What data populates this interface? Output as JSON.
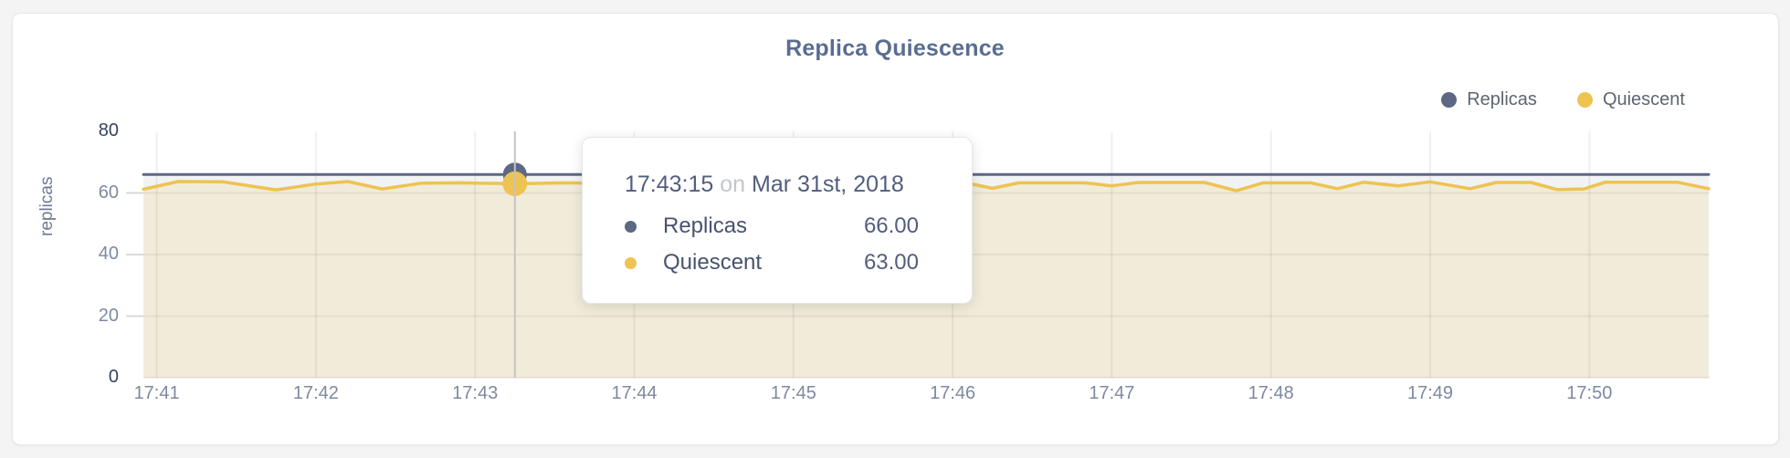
{
  "chart": {
    "title": "Replica Quiescence",
    "legend": [
      {
        "label": "Replicas",
        "color": "#5d6884"
      },
      {
        "label": "Quiescent",
        "color": "#edc351"
      }
    ],
    "y_axis": {
      "label": "replicas",
      "ticks": [
        0,
        20,
        40,
        60,
        80
      ]
    },
    "x_axis": {
      "ticks": [
        "17:41",
        "17:42",
        "17:43",
        "17:44",
        "17:45",
        "17:46",
        "17:47",
        "17:48",
        "17:49",
        "17:50"
      ]
    }
  },
  "chart_data": {
    "type": "line",
    "title": "Replica Quiescence",
    "xlabel": "",
    "ylabel": "replicas",
    "ylim": [
      0,
      80
    ],
    "grid": true,
    "legend_position": "top-right",
    "x_unit": "seconds after 17:41:00 on Mar 31st, 2018",
    "x_tick_seconds": [
      0,
      60,
      120,
      180,
      240,
      300,
      360,
      420,
      480,
      540
    ],
    "x_tick_labels": [
      "17:41",
      "17:42",
      "17:43",
      "17:44",
      "17:45",
      "17:46",
      "17:47",
      "17:48",
      "17:49",
      "17:50"
    ],
    "series": [
      {
        "name": "Replicas",
        "color": "#5d6884",
        "fill": "rgba(93,104,132,0.08)",
        "points": [
          [
            -5,
            66
          ],
          [
            585,
            66
          ]
        ]
      },
      {
        "name": "Quiescent",
        "color": "#edc351",
        "fill": "rgba(236,193,79,0.16)",
        "points": [
          [
            -5,
            61.2
          ],
          [
            8,
            63.7
          ],
          [
            25,
            63.6
          ],
          [
            45,
            61.0
          ],
          [
            60,
            62.9
          ],
          [
            72,
            63.7
          ],
          [
            85,
            61.3
          ],
          [
            100,
            63.2
          ],
          [
            115,
            63.3
          ],
          [
            135,
            63.0
          ],
          [
            155,
            63.3
          ],
          [
            170,
            63.1
          ],
          [
            185,
            63.3
          ],
          [
            200,
            63.0
          ],
          [
            215,
            63.2
          ],
          [
            230,
            63.1
          ],
          [
            245,
            63.3
          ],
          [
            260,
            63.1
          ],
          [
            275,
            63.3
          ],
          [
            290,
            63.4
          ],
          [
            305,
            63.3
          ],
          [
            315,
            61.5
          ],
          [
            325,
            63.3
          ],
          [
            350,
            63.3
          ],
          [
            360,
            62.3
          ],
          [
            370,
            63.4
          ],
          [
            395,
            63.4
          ],
          [
            407,
            60.7
          ],
          [
            417,
            63.3
          ],
          [
            435,
            63.3
          ],
          [
            445,
            61.4
          ],
          [
            455,
            63.5
          ],
          [
            468,
            62.3
          ],
          [
            480,
            63.6
          ],
          [
            495,
            61.4
          ],
          [
            505,
            63.4
          ],
          [
            518,
            63.4
          ],
          [
            528,
            61.1
          ],
          [
            538,
            61.3
          ],
          [
            546,
            63.5
          ],
          [
            573,
            63.5
          ],
          [
            585,
            61.4
          ]
        ]
      }
    ]
  },
  "hover": {
    "x_seconds": 135,
    "values": {
      "Replicas": 66,
      "Quiescent": 63
    }
  },
  "tooltip": {
    "time": "17:43:15",
    "connector": "on",
    "date": "Mar 31st, 2018",
    "rows": [
      {
        "label": "Replicas",
        "value": "66.00",
        "color": "#5d6884"
      },
      {
        "label": "Quiescent",
        "value": "63.00",
        "color": "#edc351"
      }
    ]
  }
}
